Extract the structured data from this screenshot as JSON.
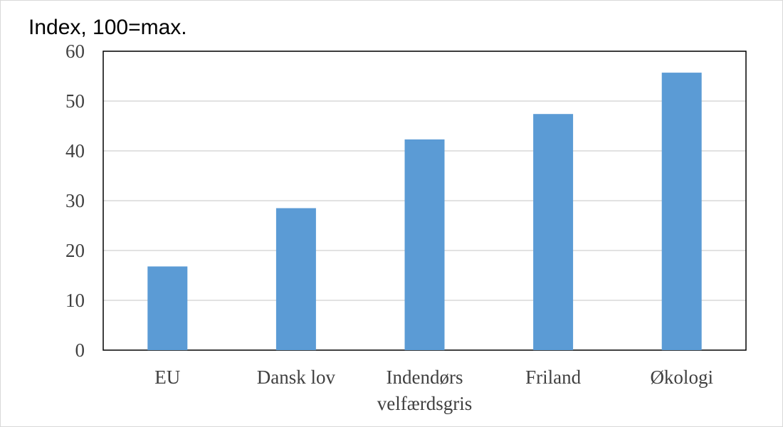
{
  "chart_data": {
    "type": "bar",
    "ylabel": "Index, 100=max.",
    "categories": [
      [
        "EU"
      ],
      [
        "Dansk lov"
      ],
      [
        "Indendørs",
        "velfærdsgris"
      ],
      [
        "Friland"
      ],
      [
        "Økologi"
      ]
    ],
    "values": [
      16.8,
      28.5,
      42.3,
      47.4,
      55.7
    ],
    "ylim": [
      0,
      60
    ],
    "yticks": [
      0,
      10,
      20,
      30,
      40,
      50,
      60
    ],
    "grid": true,
    "legend": "none",
    "colors": {
      "bar": "#5b9bd5",
      "grid": "#d9d9d9",
      "axis": "#000000",
      "tick_text": "#404040"
    }
  }
}
